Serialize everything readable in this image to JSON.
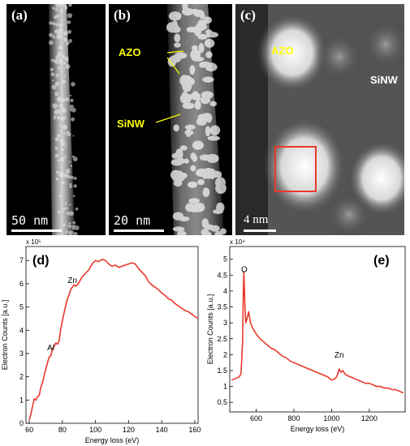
{
  "panels": {
    "a": {
      "label": "(a)",
      "scale": "50 nm"
    },
    "b": {
      "label": "(b)",
      "scale": "20 nm",
      "tag_azo": "AZO",
      "tag_sinw": "SiNW"
    },
    "c": {
      "label": "(c)",
      "scale": "4 nm",
      "tag_azo": "AZO",
      "tag_sinw": "SiNW"
    }
  },
  "colors": {
    "curve": "#e8392a",
    "tag": "#ffff00",
    "box": "#e8392a"
  },
  "chart_data": [
    {
      "type": "line",
      "panel_label": "(d)",
      "xlabel": "Energy loss (eV)",
      "ylabel": "Electron Counts [a.u.]",
      "y_multiplier": "x 10⁵",
      "xlim": [
        58,
        162
      ],
      "ylim": [
        0,
        7.6
      ],
      "xticks": [
        60,
        80,
        100,
        120,
        140,
        160
      ],
      "yticks": [
        0,
        1,
        2,
        3,
        4,
        5,
        6,
        7
      ],
      "annotations": [
        {
          "text": "Zn",
          "x": 86,
          "y": 5.9
        },
        {
          "text": "Al",
          "x": 73,
          "y": 3.0
        }
      ],
      "x": [
        60,
        61,
        62,
        63,
        64,
        65,
        66,
        67,
        68,
        69,
        70,
        71,
        72,
        73,
        74,
        75,
        76,
        77,
        78,
        79,
        80,
        81,
        82,
        83,
        84,
        85,
        86,
        87,
        88,
        89,
        90,
        92,
        94,
        96,
        98,
        100,
        102,
        104,
        106,
        108,
        110,
        112,
        114,
        116,
        118,
        120,
        122,
        124,
        126,
        128,
        130,
        132,
        134,
        136,
        138,
        140,
        142,
        144,
        146,
        148,
        150,
        152,
        154,
        156,
        158,
        160,
        162
      ],
      "values": [
        0.15,
        0.4,
        0.75,
        1.05,
        1.0,
        1.15,
        1.2,
        1.55,
        1.75,
        2.05,
        2.35,
        2.6,
        2.85,
        2.9,
        3.2,
        3.3,
        3.45,
        3.4,
        3.55,
        4.05,
        4.4,
        4.75,
        5.05,
        5.35,
        5.5,
        5.75,
        5.85,
        5.95,
        5.9,
        5.95,
        6.05,
        6.3,
        6.45,
        6.6,
        6.85,
        7.0,
        6.95,
        7.05,
        7.0,
        6.85,
        6.75,
        6.8,
        6.7,
        6.75,
        6.8,
        6.85,
        6.9,
        6.85,
        6.65,
        6.5,
        6.35,
        6.1,
        5.95,
        5.85,
        5.75,
        5.6,
        5.5,
        5.35,
        5.3,
        5.15,
        5.05,
        4.95,
        4.85,
        4.8,
        4.7,
        4.6,
        4.5
      ]
    },
    {
      "type": "line",
      "panel_label": "(e)",
      "xlabel": "Energy loss (eV)",
      "ylabel": "Electron Counts [a.u.]",
      "y_multiplier": "x 10⁴",
      "xlim": [
        460,
        1390
      ],
      "ylim": [
        0.2,
        5.4
      ],
      "xticks": [
        600,
        800,
        1000,
        1200
      ],
      "yticks": [
        0.5,
        1,
        1.5,
        2,
        2.5,
        3,
        3.5,
        4,
        4.5,
        5
      ],
      "annotations": [
        {
          "text": "O",
          "x": 537,
          "y": 4.5
        },
        {
          "text": "Zn",
          "x": 1040,
          "y": 1.8
        }
      ],
      "x": [
        470,
        490,
        510,
        520,
        528,
        532,
        535,
        540,
        545,
        550,
        560,
        570,
        580,
        600,
        620,
        640,
        660,
        680,
        700,
        720,
        740,
        760,
        780,
        800,
        820,
        840,
        860,
        880,
        900,
        920,
        940,
        960,
        980,
        1000,
        1020,
        1030,
        1040,
        1050,
        1060,
        1070,
        1080,
        1100,
        1120,
        1140,
        1160,
        1180,
        1200,
        1220,
        1240,
        1260,
        1280,
        1300,
        1320,
        1340,
        1360,
        1380
      ],
      "values": [
        1.2,
        1.25,
        1.3,
        1.4,
        2.4,
        4.0,
        4.6,
        3.6,
        3.0,
        3.1,
        3.35,
        3.0,
        2.85,
        2.65,
        2.5,
        2.4,
        2.3,
        2.2,
        2.15,
        2.05,
        1.95,
        1.9,
        1.8,
        1.75,
        1.7,
        1.65,
        1.6,
        1.55,
        1.5,
        1.45,
        1.4,
        1.35,
        1.3,
        1.2,
        1.25,
        1.35,
        1.55,
        1.45,
        1.5,
        1.4,
        1.35,
        1.3,
        1.25,
        1.2,
        1.15,
        1.1,
        1.1,
        1.05,
        1.0,
        1.0,
        0.95,
        0.95,
        0.9,
        0.9,
        0.85,
        0.8
      ]
    }
  ]
}
